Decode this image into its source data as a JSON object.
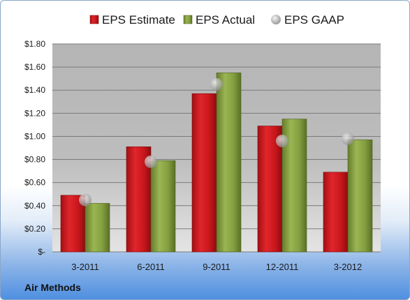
{
  "company_label": "Air Methods",
  "chart_data": {
    "type": "bar",
    "categories": [
      "3-2011",
      "6-2011",
      "9-2011",
      "12-2011",
      "3-2012"
    ],
    "series": [
      {
        "name": "EPS Estimate",
        "type": "bar",
        "color": "#c9171c",
        "values": [
          0.49,
          0.91,
          1.37,
          1.09,
          0.69
        ]
      },
      {
        "name": "EPS Actual",
        "type": "bar",
        "color": "#7f9a3c",
        "values": [
          0.42,
          0.79,
          1.55,
          1.15,
          0.97
        ]
      },
      {
        "name": "EPS GAAP",
        "type": "marker",
        "color": "#b8b8b8",
        "values": [
          0.45,
          0.78,
          1.45,
          0.96,
          0.98
        ]
      }
    ],
    "yticks": [
      "$-",
      "$0.20",
      "$0.40",
      "$0.60",
      "$0.80",
      "$1.00",
      "$1.20",
      "$1.40",
      "$1.60",
      "$1.80"
    ],
    "ylim": [
      0,
      1.8
    ],
    "grid": true,
    "legend_position": "top",
    "xlabel": "",
    "ylabel": ""
  }
}
